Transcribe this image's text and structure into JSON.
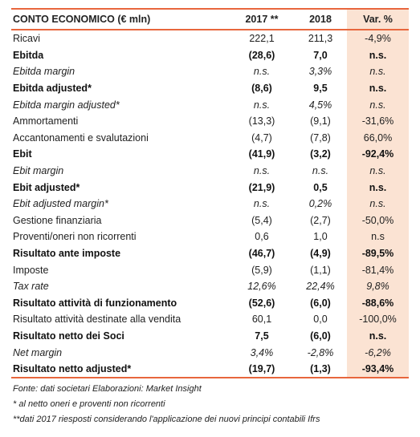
{
  "table": {
    "headers": [
      "CONTO ECONOMICO (€ mln)",
      "2017 **",
      "2018",
      "Var. %"
    ],
    "rows": [
      {
        "label": "Ricavi",
        "v2017": "222,1",
        "v2018": "211,3",
        "var": "-4,9%",
        "style": "normal"
      },
      {
        "label": "Ebitda",
        "v2017": "(28,6)",
        "v2018": "7,0",
        "var": "n.s.",
        "style": "bold"
      },
      {
        "label": "Ebitda margin",
        "v2017": "n.s.",
        "v2018": "3,3%",
        "var": "n.s.",
        "style": "italic"
      },
      {
        "label": "Ebitda adjusted*",
        "v2017": "(8,6)",
        "v2018": "9,5",
        "var": "n.s.",
        "style": "bold"
      },
      {
        "label": "Ebitda margin adjusted*",
        "v2017": "n.s.",
        "v2018": "4,5%",
        "var": "n.s.",
        "style": "italic"
      },
      {
        "label": "Ammortamenti",
        "v2017": "(13,3)",
        "v2018": "(9,1)",
        "var": "-31,6%",
        "style": "normal"
      },
      {
        "label": "Accantonamenti e svalutazioni",
        "v2017": "(4,7)",
        "v2018": "(7,8)",
        "var": "66,0%",
        "style": "normal"
      },
      {
        "label": "Ebit",
        "v2017": "(41,9)",
        "v2018": "(3,2)",
        "var": "-92,4%",
        "style": "bold"
      },
      {
        "label": "Ebit margin",
        "v2017": "n.s.",
        "v2018": "n.s.",
        "var": "n.s.",
        "style": "italic"
      },
      {
        "label": "Ebit adjusted*",
        "v2017": "(21,9)",
        "v2018": "0,5",
        "var": "n.s.",
        "style": "bold"
      },
      {
        "label": "Ebit adjusted margin*",
        "v2017": "n.s.",
        "v2018": "0,2%",
        "var": "n.s.",
        "style": "italic"
      },
      {
        "label": "Gestione finanziaria",
        "v2017": "(5,4)",
        "v2018": "(2,7)",
        "var": "-50,0%",
        "style": "normal"
      },
      {
        "label": "Proventi/oneri non ricorrenti",
        "v2017": "0,6",
        "v2018": "1,0",
        "var": "n.s",
        "style": "normal"
      },
      {
        "label": "Risultato ante imposte",
        "v2017": "(46,7)",
        "v2018": "(4,9)",
        "var": "-89,5%",
        "style": "bold"
      },
      {
        "label": "Imposte",
        "v2017": "(5,9)",
        "v2018": "(1,1)",
        "var": "-81,4%",
        "style": "normal"
      },
      {
        "label": "Tax rate",
        "v2017": "12,6%",
        "v2018": "22,4%",
        "var": "9,8%",
        "style": "italic"
      },
      {
        "label": "Risultato attività di funzionamento",
        "v2017": "(52,6)",
        "v2018": "(6,0)",
        "var": "-88,6%",
        "style": "bold"
      },
      {
        "label": "Risultato attività destinate alla vendita",
        "v2017": "60,1",
        "v2018": "0,0",
        "var": "-100,0%",
        "style": "normal"
      },
      {
        "label": "Risultato netto dei Soci",
        "v2017": "7,5",
        "v2018": "(6,0)",
        "var": "n.s.",
        "style": "bold"
      },
      {
        "label": "Net margin",
        "v2017": "3,4%",
        "v2018": "-2,8%",
        "var": "-6,2%",
        "style": "italic"
      },
      {
        "label": "Risultato netto adjusted*",
        "v2017": "(19,7)",
        "v2018": "(1,3)",
        "var": "-93,4%",
        "style": "bold"
      }
    ]
  },
  "notes": [
    "Fonte: dati societari  Elaborazioni: Market Insight",
    "* al netto oneri e proventi non ricorrenti",
    "**dati 2017 riesposti considerando l'applicazione dei nuovi principi contabili Ifrs"
  ],
  "colors": {
    "accent": "#e8663d",
    "var_column_bg": "#fbe3d3"
  }
}
